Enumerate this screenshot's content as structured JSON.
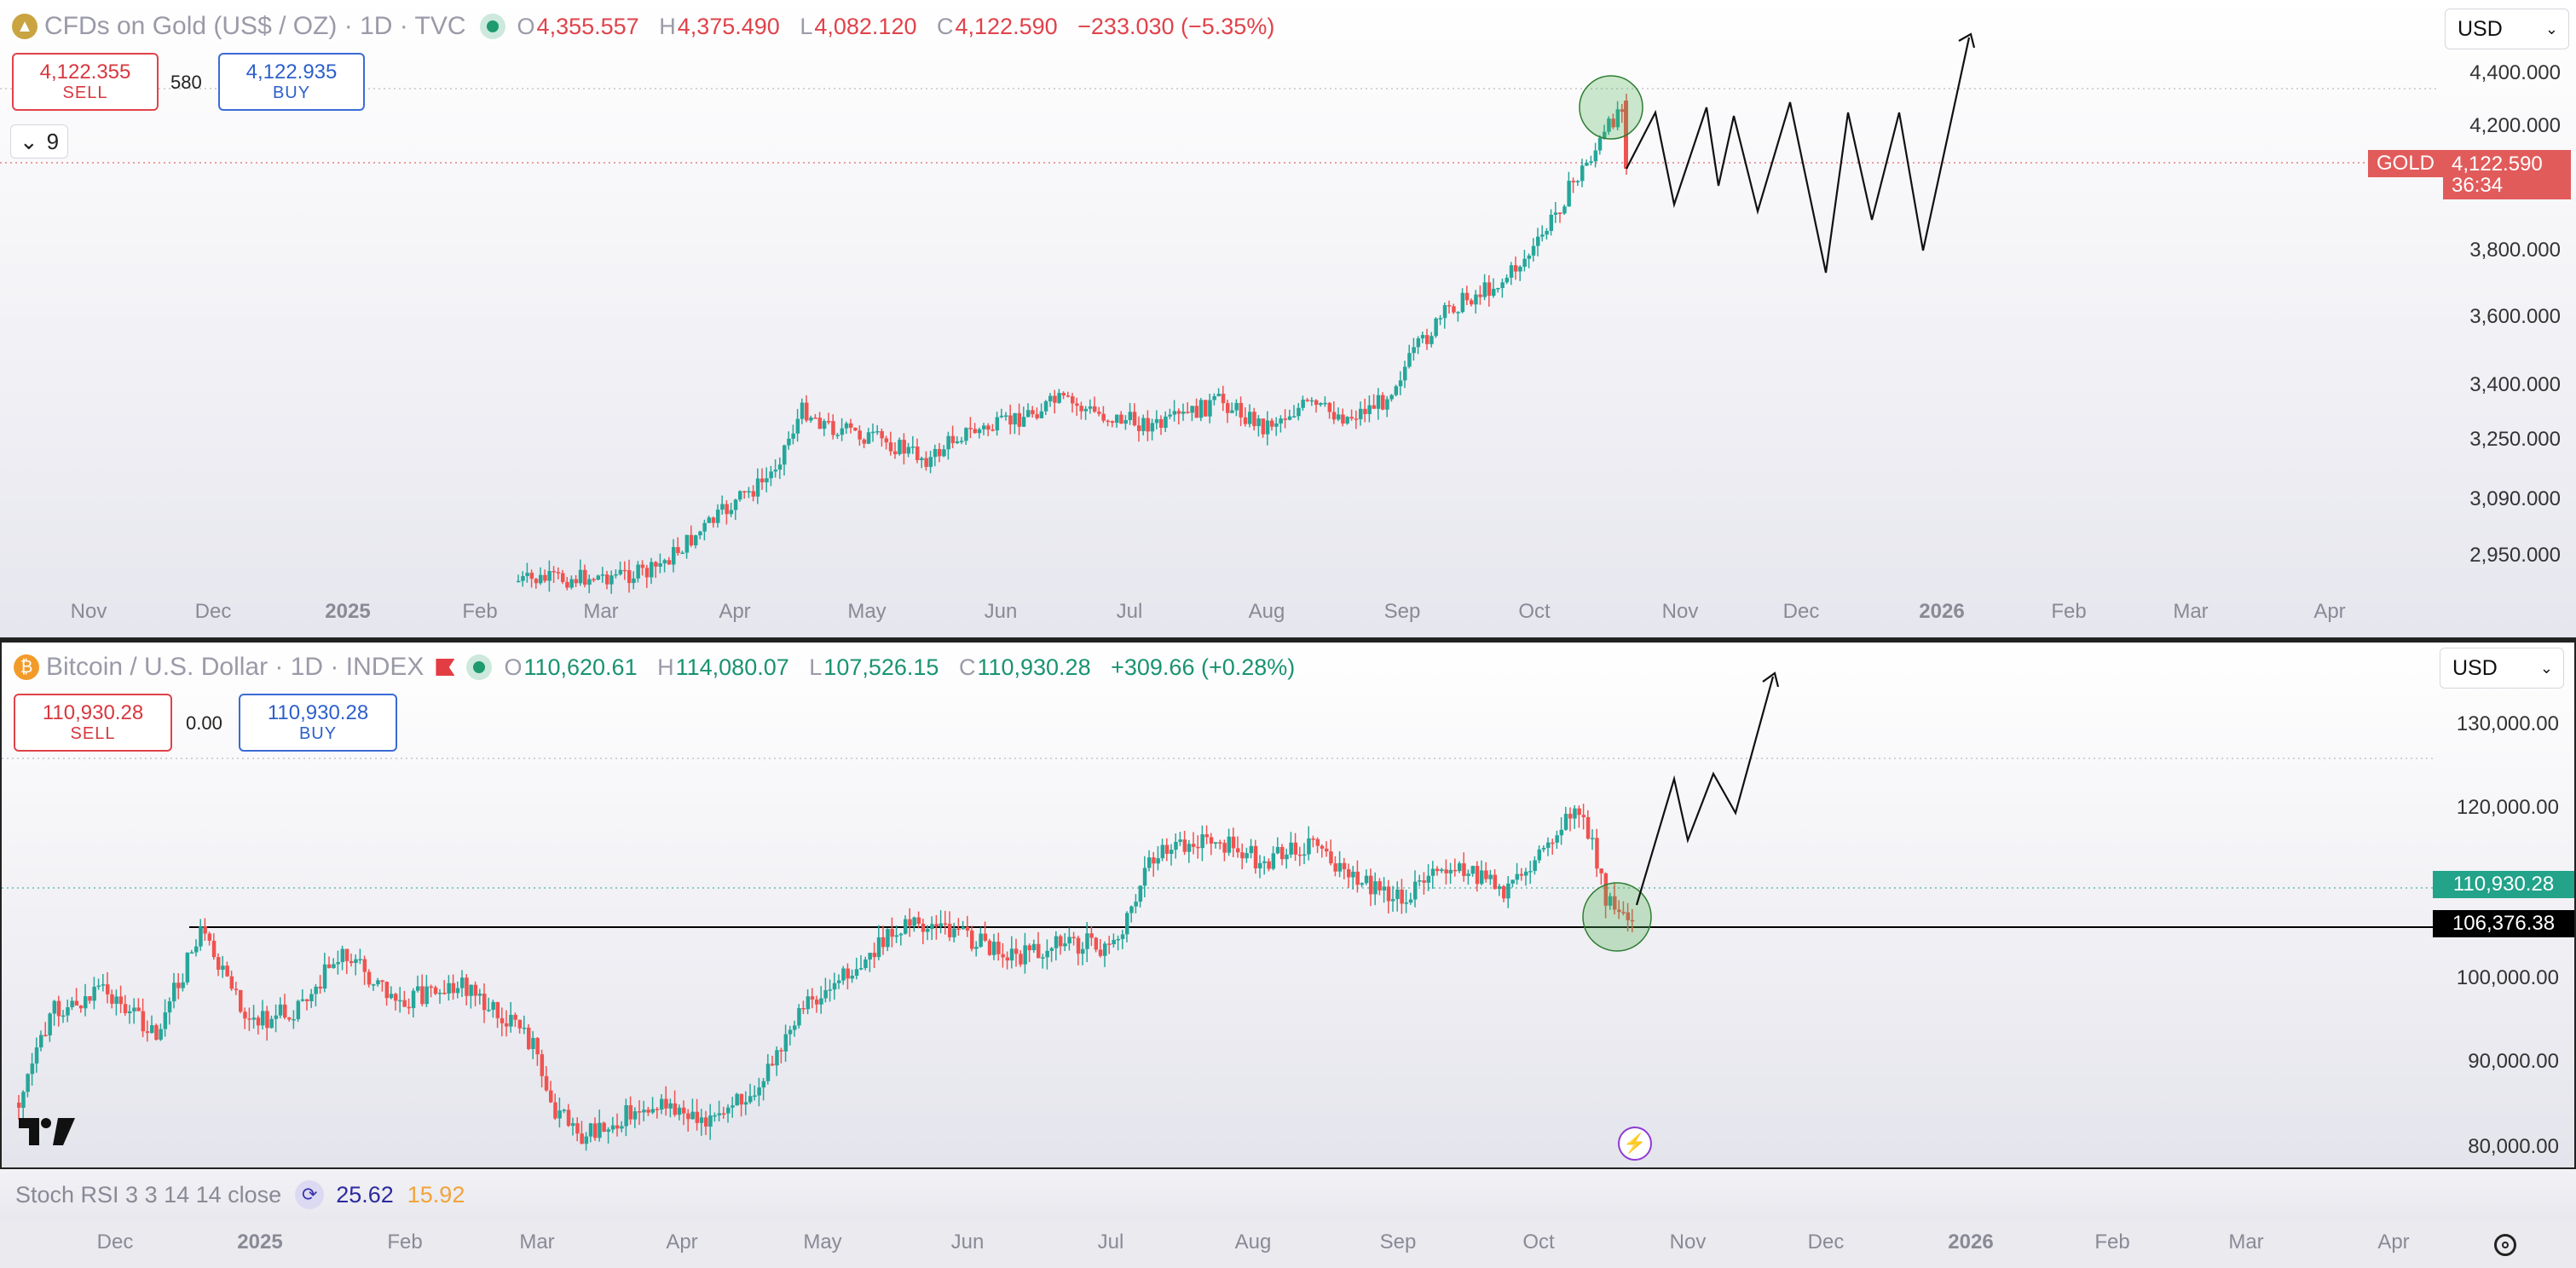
{
  "gold": {
    "name": "CFDs on Gold (US$ / OZ) · 1D · TVC",
    "ohlc": [
      {
        "k": "O",
        "v": "4,355.557"
      },
      {
        "k": "H",
        "v": "4,375.490"
      },
      {
        "k": "L",
        "v": "4,082.120"
      },
      {
        "k": "C",
        "v": "4,122.590"
      }
    ],
    "change": "−233.030 (−5.35%)",
    "sell_price": "4,122.355",
    "sell_label": "SELL",
    "spread": "580",
    "buy_price": "4,122.935",
    "buy_label": "BUY",
    "currency": "USD",
    "collapse_count": "9",
    "y_ticks": [
      "4,400.000",
      "4,200.000",
      "3,800.000",
      "3,600.000",
      "3,400.000",
      "3,250.000",
      "3,090.000",
      "2,950.000"
    ],
    "x_ticks": [
      "Nov",
      "Dec",
      "2025",
      "Feb",
      "Mar",
      "Apr",
      "May",
      "Jun",
      "Jul",
      "Aug",
      "Sep",
      "Oct",
      "Nov",
      "Dec",
      "2026",
      "Feb",
      "Mar",
      "Apr"
    ],
    "price_tag_label": "GOLD",
    "price_tag_value": "4,122.590",
    "price_tag_timer": "36:34",
    "colors": {
      "up": "#26a69a",
      "down": "#ef5350",
      "tag": "#e25b5b"
    }
  },
  "btc": {
    "name": "Bitcoin / U.S. Dollar · 1D · INDEX",
    "ohlc": [
      {
        "k": "O",
        "v": "110,620.61"
      },
      {
        "k": "H",
        "v": "114,080.07"
      },
      {
        "k": "L",
        "v": "107,526.15"
      },
      {
        "k": "C",
        "v": "110,930.28"
      }
    ],
    "change": "+309.66 (+0.28%)",
    "sell_price": "110,930.28",
    "sell_label": "SELL",
    "spread": "0.00",
    "buy_price": "110,930.28",
    "buy_label": "BUY",
    "currency": "USD",
    "y_ticks": [
      "130,000.00",
      "120,000.00",
      "100,000.00",
      "90,000.00",
      "80,000.00"
    ],
    "x_ticks": [
      "Dec",
      "2025",
      "Feb",
      "Mar",
      "Apr",
      "May",
      "Jun",
      "Jul",
      "Aug",
      "Sep",
      "Oct",
      "Nov",
      "Dec",
      "2026",
      "Feb",
      "Mar",
      "Apr"
    ],
    "price_tag": "110,930.28",
    "line_tag": "106,376.38",
    "colors": {
      "up": "#26a69a",
      "down": "#ef5350",
      "price_tag": "#22a38a",
      "line_tag": "#000000"
    }
  },
  "indicator": {
    "name": "Stoch RSI 3 3 14 14 close",
    "k_value": "25.62",
    "d_value": "15.92",
    "colors": {
      "k": "#2d2a9e",
      "d": "#f2a33a"
    }
  },
  "icons": [
    "gold-symbol-icon",
    "bitcoin-symbol-icon",
    "live-dot-icon",
    "flag-icon",
    "chevron-down-icon",
    "tradingview-logo-icon",
    "lightning-icon",
    "settings-icon",
    "refresh-icon"
  ]
}
